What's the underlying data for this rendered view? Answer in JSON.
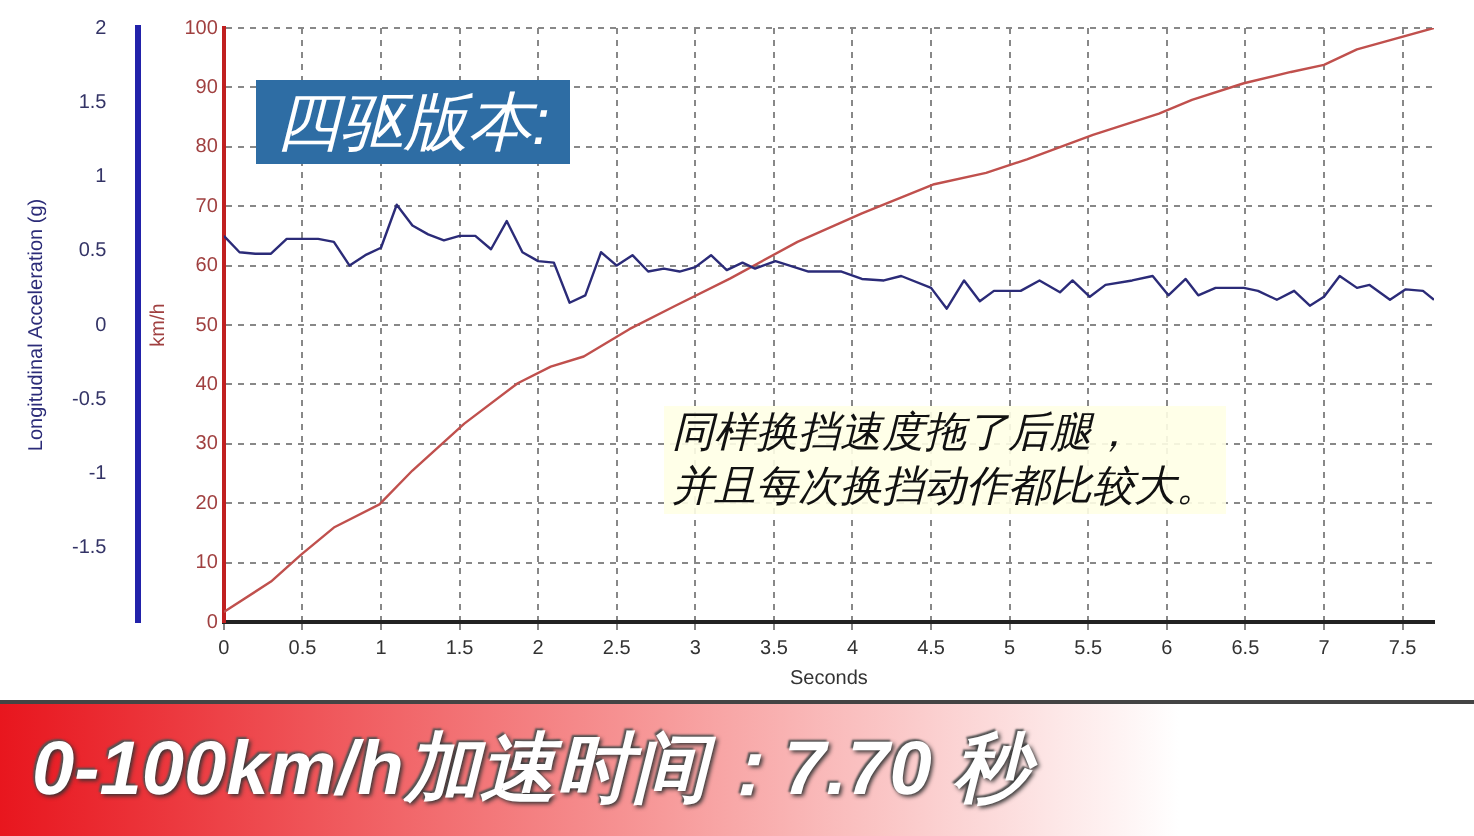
{
  "chart_data": {
    "type": "line",
    "title": "四驱版本:",
    "xlabel": "Seconds",
    "ylabel": "Longitudinal Acceleration (g)",
    "y2label": "km/h",
    "xlim": [
      0,
      7.7
    ],
    "xticks": [
      0,
      0.5,
      1,
      1.5,
      2,
      2.5,
      3,
      3.5,
      4,
      4.5,
      5,
      5.5,
      6,
      6.5,
      7,
      7.5
    ],
    "ylim": [
      -2,
      2
    ],
    "yticks": [
      -1.5,
      -1,
      -0.5,
      0,
      0.5,
      1,
      1.5,
      2
    ],
    "y2lim": [
      0,
      100
    ],
    "y2ticks": [
      0,
      10,
      20,
      30,
      40,
      50,
      60,
      70,
      80,
      90,
      100
    ],
    "grid": true,
    "legend": false,
    "marker": "none",
    "line_style": "solid",
    "series": [
      {
        "color": "#2b2b78",
        "x": [
          0,
          0.1,
          0.2,
          0.3,
          0.4,
          0.6,
          0.7,
          0.8,
          0.9,
          1.0,
          1.1,
          1.2,
          1.3,
          1.4,
          1.5,
          1.6,
          1.7,
          1.8,
          1.9,
          2.0,
          2.1,
          2.2,
          2.3,
          2.4,
          2.5,
          2.6,
          2.7,
          2.8,
          2.9,
          3.0,
          3.1,
          3.2,
          3.3,
          3.38,
          3.51,
          3.72,
          3.93,
          4.06,
          4.2,
          4.31,
          4.5,
          4.6,
          4.71,
          4.81,
          4.9,
          5.07,
          5.19,
          5.32,
          5.4,
          5.51,
          5.61,
          5.78,
          5.91,
          6.01,
          6.12,
          6.2,
          6.31,
          6.49,
          6.58,
          6.7,
          6.81,
          6.91,
          7.0,
          7.1,
          7.21,
          7.29,
          7.42,
          7.52,
          7.63,
          7.7
        ],
        "values": [
          0.6,
          0.49,
          0.48,
          0.48,
          0.58,
          0.58,
          0.56,
          0.4,
          0.47,
          0.52,
          0.81,
          0.67,
          0.61,
          0.57,
          0.6,
          0.6,
          0.51,
          0.7,
          0.49,
          0.43,
          0.42,
          0.15,
          0.2,
          0.49,
          0.4,
          0.47,
          0.36,
          0.38,
          0.36,
          0.39,
          0.47,
          0.37,
          0.42,
          0.38,
          0.43,
          0.36,
          0.36,
          0.31,
          0.3,
          0.33,
          0.25,
          0.11,
          0.3,
          0.16,
          0.23,
          0.23,
          0.3,
          0.22,
          0.3,
          0.19,
          0.27,
          0.3,
          0.33,
          0.2,
          0.31,
          0.2,
          0.25,
          0.25,
          0.23,
          0.17,
          0.23,
          0.13,
          0.19,
          0.33,
          0.25,
          0.27,
          0.17,
          0.24,
          0.23,
          0.17
        ]
      },
      {
        "color": "#c0504d",
        "axis": "y2",
        "x": [
          0,
          0.3,
          0.49,
          0.7,
          0.99,
          1.2,
          1.53,
          1.87,
          2.08,
          2.29,
          2.58,
          2.87,
          3.22,
          3.65,
          4.06,
          4.52,
          4.85,
          5.11,
          5.53,
          5.95,
          6.16,
          6.49,
          6.79,
          7.0,
          7.21,
          7.7
        ],
        "values": [
          1.7,
          6.8,
          11.3,
          15.9,
          19.8,
          25.5,
          33.4,
          40.2,
          43,
          44.7,
          49.3,
          53.2,
          57.8,
          64,
          68.8,
          73.7,
          75.6,
          77.9,
          82,
          85.6,
          87.9,
          90.7,
          92.6,
          93.8,
          96.4,
          100
        ]
      }
    ],
    "annotations": [
      "同样换挡速度拖了后腿，",
      "并且每次换挡动作都比较大。",
      "0-100km/h加速时间：7.70 秒"
    ]
  }
}
